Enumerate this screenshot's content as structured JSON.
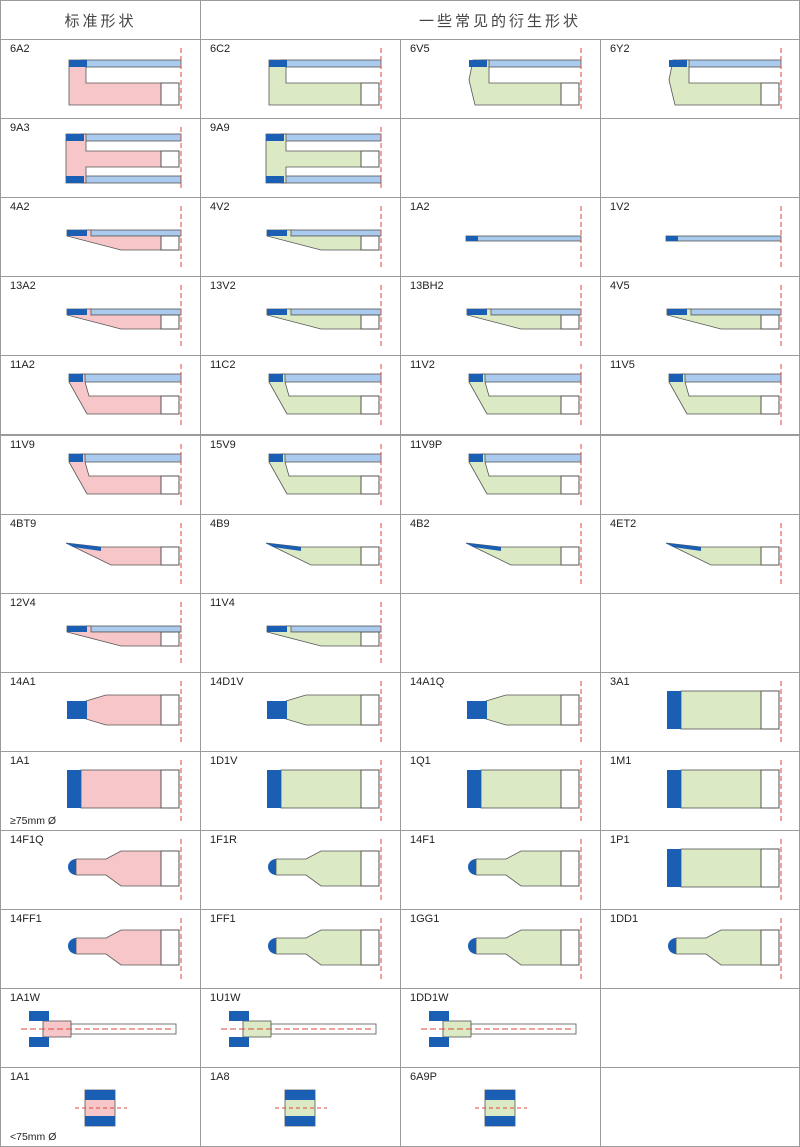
{
  "headers": {
    "standard": "标准形状",
    "derived": "一些常见的衍生形状"
  },
  "colors": {
    "blue": "#1a5fb4",
    "light_blue": "#aacbee",
    "pink": "#f6c6c8",
    "green": "#dbeac4",
    "outline": "#555555",
    "red": "#e0453a"
  },
  "rows": [
    [
      {
        "label": "6A2",
        "shape": "cup",
        "color": "pink"
      },
      {
        "label": "6C2",
        "shape": "cup",
        "color": "green"
      },
      {
        "label": "6V5",
        "shape": "cupV",
        "color": "green"
      },
      {
        "label": "6Y2",
        "shape": "cupV",
        "color": "green"
      }
    ],
    [
      {
        "label": "9A3",
        "shape": "double",
        "color": "pink"
      },
      {
        "label": "9A9",
        "shape": "double",
        "color": "green"
      },
      null,
      null
    ],
    [
      {
        "label": "4A2",
        "shape": "dish",
        "color": "pink"
      },
      {
        "label": "4V2",
        "shape": "dish",
        "color": "green"
      },
      {
        "label": "1A2",
        "shape": "flat",
        "color": "green"
      },
      {
        "label": "1V2",
        "shape": "flat",
        "color": "green"
      }
    ],
    [
      {
        "label": "13A2",
        "shape": "taper",
        "color": "pink"
      },
      {
        "label": "13V2",
        "shape": "taper",
        "color": "green"
      },
      {
        "label": "13BH2",
        "shape": "taper",
        "color": "green"
      },
      {
        "label": "4V5",
        "shape": "taper",
        "color": "green"
      }
    ],
    [
      {
        "label": "11A2",
        "shape": "flare",
        "color": "pink"
      },
      {
        "label": "11C2",
        "shape": "flare",
        "color": "green"
      },
      {
        "label": "11V2",
        "shape": "flare",
        "color": "green"
      },
      {
        "label": "11V5",
        "shape": "flare",
        "color": "green"
      }
    ],
    [
      {
        "label": "11V9",
        "shape": "flare",
        "color": "pink"
      },
      {
        "label": "15V9",
        "shape": "flare",
        "color": "green"
      },
      {
        "label": "11V9P",
        "shape": "flare",
        "color": "green"
      },
      null
    ],
    [
      {
        "label": "4BT9",
        "shape": "point",
        "color": "pink"
      },
      {
        "label": "4B9",
        "shape": "point",
        "color": "green"
      },
      {
        "label": "4B2",
        "shape": "point",
        "color": "green"
      },
      {
        "label": "4ET2",
        "shape": "point",
        "color": "green"
      }
    ],
    [
      {
        "label": "12V4",
        "shape": "taper",
        "color": "pink"
      },
      {
        "label": "11V4",
        "shape": "taper",
        "color": "green"
      },
      null,
      null
    ],
    [
      {
        "label": "14A1",
        "shape": "step",
        "color": "pink"
      },
      {
        "label": "14D1V",
        "shape": "step",
        "color": "green"
      },
      {
        "label": "14A1Q",
        "shape": "step",
        "color": "green"
      },
      {
        "label": "3A1",
        "shape": "block",
        "color": "green"
      }
    ],
    [
      {
        "label": "1A1",
        "shape": "block",
        "color": "pink",
        "note": "≥75mm Ø"
      },
      {
        "label": "1D1V",
        "shape": "block",
        "color": "green"
      },
      {
        "label": "1Q1",
        "shape": "block",
        "color": "green"
      },
      {
        "label": "1M1",
        "shape": "block",
        "color": "green"
      }
    ],
    [
      {
        "label": "14F1Q",
        "shape": "round",
        "color": "pink"
      },
      {
        "label": "1F1R",
        "shape": "round",
        "color": "green"
      },
      {
        "label": "14F1",
        "shape": "round",
        "color": "green"
      },
      {
        "label": "1P1",
        "shape": "block",
        "color": "green"
      }
    ],
    [
      {
        "label": "14FF1",
        "shape": "round",
        "color": "pink"
      },
      {
        "label": "1FF1",
        "shape": "round",
        "color": "green"
      },
      {
        "label": "1GG1",
        "shape": "round",
        "color": "green"
      },
      {
        "label": "1DD1",
        "shape": "round",
        "color": "green"
      }
    ],
    [
      {
        "label": "1A1W",
        "shape": "wheel",
        "color": "pink"
      },
      {
        "label": "1U1W",
        "shape": "wheel",
        "color": "green"
      },
      {
        "label": "1DD1W",
        "shape": "wheel",
        "color": "green"
      },
      null
    ],
    [
      {
        "label": "1A1",
        "shape": "small",
        "color": "pink",
        "note": "<75mm Ø"
      },
      {
        "label": "1A8",
        "shape": "small",
        "color": "green"
      },
      {
        "label": "6A9P",
        "shape": "small",
        "color": "green"
      },
      null
    ]
  ]
}
